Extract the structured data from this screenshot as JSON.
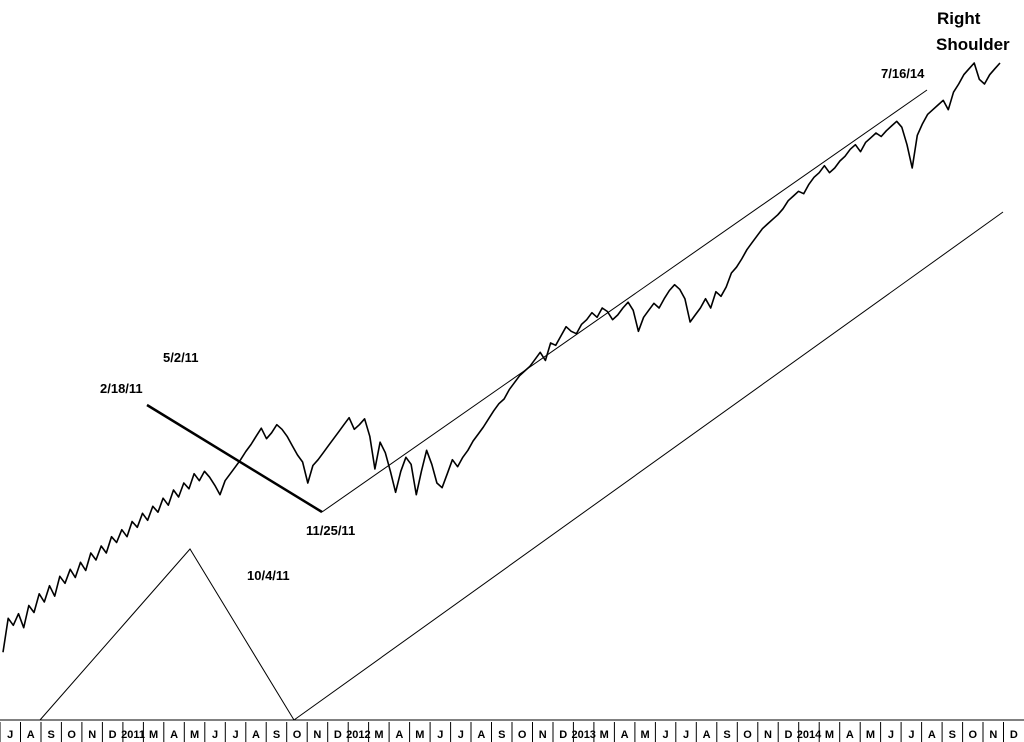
{
  "chart_data": {
    "type": "line",
    "title": "",
    "xlabel": "",
    "ylabel": "",
    "grid": false,
    "x_axis_labels": [
      "J",
      "A",
      "S",
      "O",
      "N",
      "D",
      "2011",
      "M",
      "A",
      "M",
      "J",
      "J",
      "A",
      "S",
      "O",
      "N",
      "D",
      "2012",
      "M",
      "A",
      "M",
      "J",
      "J",
      "A",
      "S",
      "O",
      "N",
      "D",
      "2013",
      "M",
      "A",
      "M",
      "J",
      "J",
      "A",
      "S",
      "O",
      "N",
      "D",
      "2014",
      "M",
      "A",
      "M",
      "J",
      "J",
      "A",
      "S",
      "O",
      "N",
      "D"
    ],
    "series": [
      {
        "values": [
          5,
          34,
          28,
          38,
          26,
          45,
          39,
          55,
          48,
          62,
          53,
          70,
          64,
          76,
          69,
          82,
          75,
          90,
          84,
          96,
          90,
          104,
          99,
          110,
          104,
          117,
          112,
          124,
          118,
          130,
          125,
          137,
          131,
          144,
          138,
          150,
          145,
          158,
          152,
          160,
          155,
          148,
          140,
          152,
          158,
          164,
          170,
          177,
          183,
          190,
          197,
          188,
          193,
          200,
          196,
          190,
          182,
          174,
          168,
          150,
          165,
          170,
          176,
          182,
          188,
          194,
          200,
          206,
          196,
          200,
          205,
          190,
          162,
          185,
          176,
          160,
          142,
          160,
          172,
          166,
          140,
          160,
          178,
          166,
          150,
          146,
          158,
          170,
          164,
          172,
          178,
          186,
          192,
          198,
          205,
          212,
          218,
          222,
          230,
          236,
          242,
          246,
          250,
          256,
          262,
          255,
          270,
          268,
          276,
          284,
          280,
          278,
          286,
          290,
          296,
          292,
          300,
          297,
          290,
          294,
          300,
          305,
          298,
          280,
          292,
          298,
          304,
          300,
          308,
          315,
          320,
          316,
          308,
          288,
          294,
          300,
          308,
          300,
          314,
          310,
          318,
          330,
          335,
          342,
          350,
          356,
          362,
          368,
          372,
          376,
          380,
          385,
          392,
          396,
          400,
          398,
          406,
          412,
          416,
          422,
          416,
          420,
          426,
          430,
          436,
          440,
          434,
          442,
          446,
          450,
          447,
          452,
          456,
          460,
          455,
          440,
          420,
          448,
          458,
          466,
          470,
          474,
          478,
          470,
          485,
          492,
          500,
          505,
          510,
          496,
          492,
          500,
          505,
          510
        ],
        "annotation_points": [
          {
            "label": "2/18/11",
            "value": 192
          },
          {
            "label": "5/2/11",
            "value": 205
          },
          {
            "label": "10/4/11",
            "value": 140
          },
          {
            "label": "11/25/11",
            "value": 150
          },
          {
            "label": "7/16/14",
            "value": 452
          }
        ]
      }
    ],
    "trendlines": [
      {
        "name": "downtrend-2/18/11-11/25/11"
      },
      {
        "name": "uptrend-11/25/11-7/16/14"
      },
      {
        "name": "lower-parallel-channel"
      },
      {
        "name": "zigzag-wave"
      }
    ],
    "annotations": [
      {
        "text": "5/2/11"
      },
      {
        "text": "2/18/11"
      },
      {
        "text": "11/25/11"
      },
      {
        "text": "10/4/11"
      },
      {
        "text": "7/16/14"
      },
      {
        "text": "Right"
      },
      {
        "text": "Shoulder"
      }
    ],
    "colors": {
      "line": "#000000",
      "background": "#ffffff"
    }
  }
}
